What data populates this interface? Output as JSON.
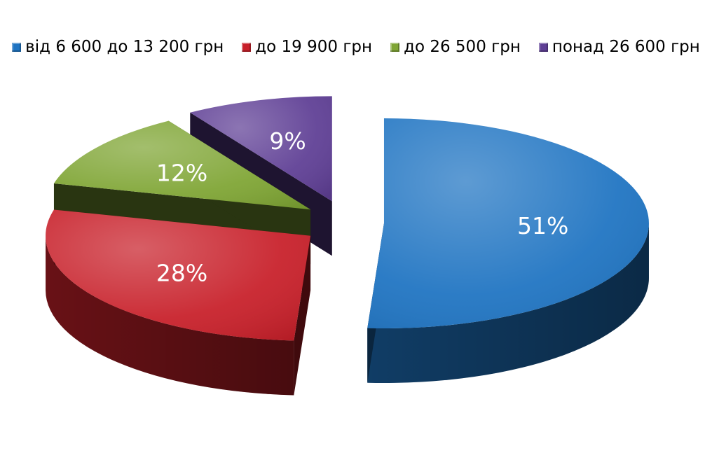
{
  "chart_data": {
    "type": "pie",
    "style": "3d-exploded",
    "title": "",
    "legend_position": "top",
    "categories": [
      "від 6 600 до 13 200 грн",
      "до 19 900 грн",
      "до 26 500 грн",
      "понад 26 600 грн"
    ],
    "values": [
      51,
      28,
      12,
      9
    ],
    "data_labels": [
      "51%",
      "28%",
      "12%",
      "9%"
    ],
    "colors": [
      "#1f74c2",
      "#c8202a",
      "#7fa534",
      "#5f3f95"
    ]
  }
}
